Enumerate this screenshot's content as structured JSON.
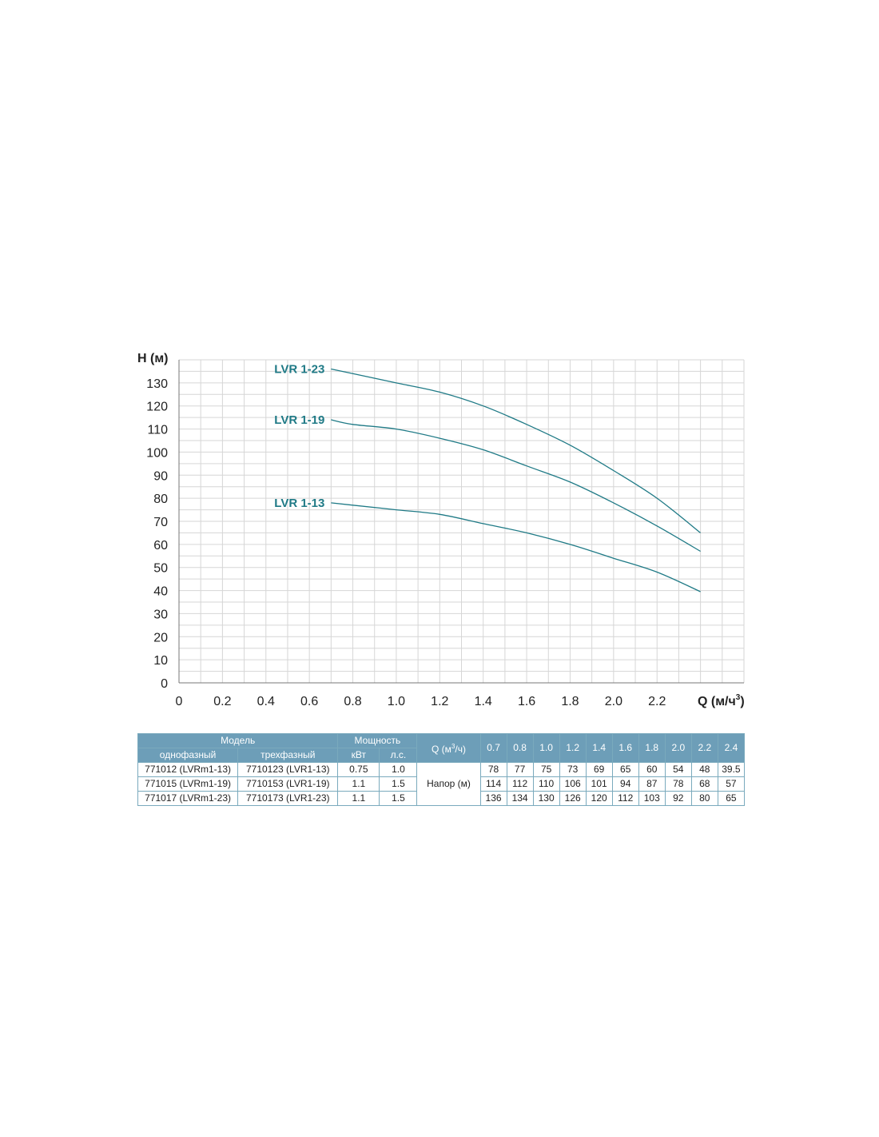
{
  "chart_data": {
    "type": "line",
    "ylabel": "H (м)",
    "xlabel": "Q (м/ч",
    "xlabel_sup": "3",
    "xlabel_close": ")",
    "xlim": [
      0,
      2.6
    ],
    "ylim": [
      0,
      140
    ],
    "x_ticks": [
      "0",
      "0.2",
      "0.4",
      "0.6",
      "0.8",
      "1.0",
      "1.2",
      "1.4",
      "1.6",
      "1.8",
      "2.0",
      "2.2"
    ],
    "y_ticks": [
      "0",
      "10",
      "20",
      "30",
      "40",
      "50",
      "60",
      "70",
      "80",
      "90",
      "100",
      "110",
      "120",
      "130"
    ],
    "grid": true,
    "x": [
      0.7,
      0.8,
      1.0,
      1.2,
      1.4,
      1.6,
      1.8,
      2.0,
      2.2,
      2.4
    ],
    "series": [
      {
        "name": "LVR 1-23",
        "color": "#1f7a86",
        "values": [
          136,
          134,
          130,
          126,
          120,
          112,
          103,
          92,
          80,
          65
        ]
      },
      {
        "name": "LVR 1-19",
        "color": "#1f7a86",
        "values": [
          114,
          112,
          110,
          106,
          101,
          94,
          87,
          78,
          68,
          57
        ]
      },
      {
        "name": "LVR 1-13",
        "color": "#1f7a86",
        "values": [
          78,
          77,
          75,
          73,
          69,
          65,
          60,
          54,
          48,
          39.5
        ]
      }
    ]
  },
  "table": {
    "model_header": "Модель",
    "single_phase": "однофазный",
    "three_phase": "трехфазный",
    "power_header": "Мощность",
    "kw": "кВт",
    "hp": "л.с.",
    "q_header": "Q (м",
    "q_header_sup": "3",
    "q_header_close": "/ч)",
    "head_label": "Напор (м)",
    "q_values": [
      "0.7",
      "0.8",
      "1.0",
      "1.2",
      "1.4",
      "1.6",
      "1.8",
      "2.0",
      "2.2",
      "2.4"
    ],
    "rows": [
      {
        "single": "771012 (LVRm1-13)",
        "three": "7710123 (LVR1-13)",
        "kw": "0.75",
        "hp": "1.0",
        "heads": [
          "78",
          "77",
          "75",
          "73",
          "69",
          "65",
          "60",
          "54",
          "48",
          "39.5"
        ]
      },
      {
        "single": "771015 (LVRm1-19)",
        "three": "7710153 (LVR1-19)",
        "kw": "1.1",
        "hp": "1.5",
        "heads": [
          "114",
          "112",
          "110",
          "106",
          "101",
          "94",
          "87",
          "78",
          "68",
          "57"
        ]
      },
      {
        "single": "771017 (LVRm1-23)",
        "three": "7710173 (LVR1-23)",
        "kw": "1.1",
        "hp": "1.5",
        "heads": [
          "136",
          "134",
          "130",
          "126",
          "120",
          "112",
          "103",
          "92",
          "80",
          "65"
        ]
      }
    ]
  }
}
